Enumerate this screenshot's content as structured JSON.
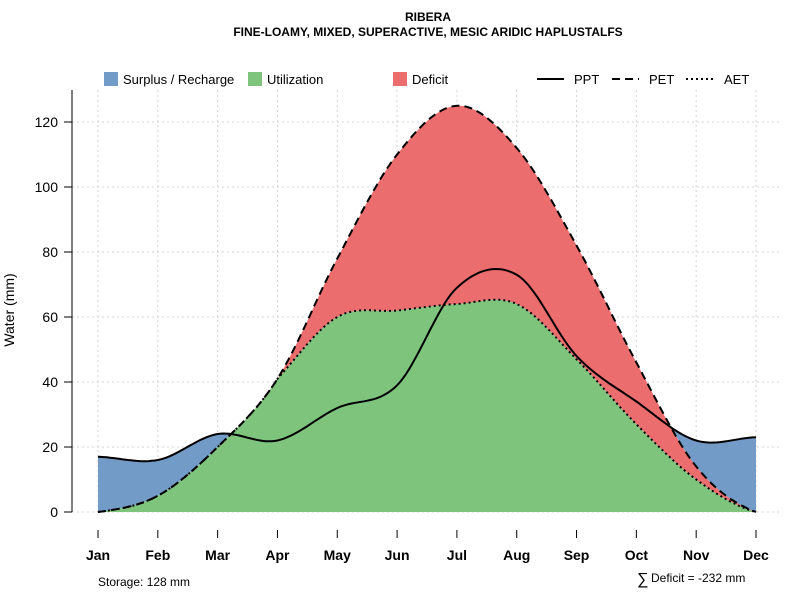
{
  "chart_data": {
    "type": "area",
    "title": "RIBERA",
    "subtitle": "FINE-LOAMY, MIXED, SUPERACTIVE, MESIC ARIDIC HAPLUSTALFS",
    "xlabel": "",
    "ylabel": "Water (mm)",
    "ylim": [
      0,
      130
    ],
    "yticks": [
      0,
      20,
      40,
      60,
      80,
      100,
      120
    ],
    "categories": [
      "Jan",
      "Feb",
      "Mar",
      "Apr",
      "May",
      "Jun",
      "Jul",
      "Aug",
      "Sep",
      "Oct",
      "Nov",
      "Dec"
    ],
    "grid": true,
    "legend_position": "top",
    "legend": {
      "areas": [
        {
          "name": "Surplus / Recharge",
          "color": "#739BC8"
        },
        {
          "name": "Utilization",
          "color": "#7EC47C"
        },
        {
          "name": "Deficit",
          "color": "#EC6D6E"
        }
      ],
      "lines": [
        {
          "name": "PPT",
          "style": "solid"
        },
        {
          "name": "PET",
          "style": "dashed"
        },
        {
          "name": "AET",
          "style": "dotted"
        }
      ]
    },
    "series": [
      {
        "name": "PPT",
        "values": [
          17,
          16,
          24,
          22,
          32,
          39,
          69,
          73,
          48,
          34,
          22,
          23
        ]
      },
      {
        "name": "PET",
        "values": [
          0,
          5,
          20,
          41,
          78,
          110,
          125,
          112,
          82,
          46,
          14,
          0
        ]
      },
      {
        "name": "AET",
        "values": [
          0,
          5,
          20,
          41,
          60,
          62,
          64,
          64,
          47,
          27,
          10,
          0
        ]
      }
    ],
    "annotations": {
      "storage": "Storage: 128 mm",
      "deficit": "Deficit = -232 mm",
      "deficit_symbol": "∑"
    }
  }
}
